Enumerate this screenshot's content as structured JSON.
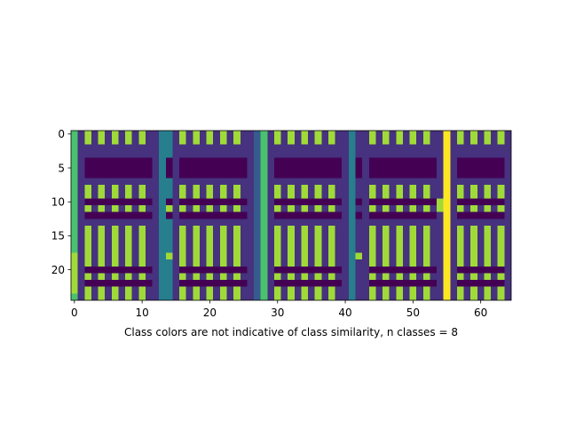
{
  "chart_data": {
    "type": "heatmap",
    "title": "",
    "xlabel": "Class colors are not indicative of class similarity, n classes = 8",
    "ylabel": "",
    "n_classes": 8,
    "n_rows": 25,
    "n_cols": 65,
    "xlim": [
      -0.5,
      64.5
    ],
    "ylim": [
      24.5,
      -0.5
    ],
    "x_ticks": [
      0,
      10,
      20,
      30,
      40,
      50,
      60
    ],
    "y_ticks": [
      0,
      5,
      10,
      15,
      20
    ],
    "colormap": "viridis",
    "class_colors": [
      "#440154",
      "#46327e",
      "#365c8d",
      "#277f8e",
      "#1fa187",
      "#4ac16d",
      "#a0da39",
      "#fde725"
    ],
    "column_patterns": {
      "A": [
        5,
        5,
        5,
        5,
        5,
        5,
        5,
        5,
        5,
        5,
        5,
        5,
        5,
        5,
        5,
        5,
        5,
        5,
        6,
        6,
        6,
        6,
        6,
        6,
        5
      ],
      "B": [
        1,
        1,
        1,
        1,
        1,
        1,
        1,
        1,
        1,
        1,
        1,
        1,
        1,
        1,
        1,
        1,
        1,
        1,
        1,
        1,
        1,
        1,
        1,
        1,
        1
      ],
      "C": [
        6,
        6,
        1,
        1,
        0,
        0,
        0,
        1,
        6,
        6,
        0,
        6,
        0,
        1,
        6,
        6,
        6,
        6,
        6,
        6,
        0,
        6,
        0,
        6,
        6
      ],
      "D": [
        1,
        1,
        1,
        1,
        0,
        0,
        0,
        1,
        1,
        1,
        0,
        1,
        0,
        1,
        1,
        1,
        1,
        1,
        1,
        1,
        0,
        1,
        0,
        1,
        1
      ],
      "E": [
        3,
        3,
        3,
        3,
        3,
        3,
        3,
        3,
        3,
        3,
        3,
        3,
        3,
        3,
        3,
        3,
        3,
        3,
        3,
        3,
        3,
        3,
        3,
        3,
        3
      ],
      "F": [
        3,
        3,
        3,
        3,
        0,
        0,
        0,
        3,
        3,
        3,
        0,
        6,
        0,
        3,
        3,
        3,
        3,
        3,
        6,
        3,
        3,
        3,
        3,
        3,
        3
      ],
      "G": [
        2,
        2,
        2,
        2,
        2,
        2,
        2,
        2,
        2,
        2,
        2,
        2,
        2,
        2,
        2,
        2,
        2,
        2,
        2,
        2,
        2,
        2,
        2,
        2,
        2
      ],
      "H": [
        5,
        5,
        5,
        5,
        5,
        5,
        5,
        5,
        5,
        5,
        5,
        5,
        5,
        5,
        5,
        5,
        5,
        5,
        5,
        5,
        5,
        5,
        5,
        5,
        5
      ],
      "I": [
        1,
        1,
        1,
        1,
        0,
        0,
        0,
        1,
        1,
        1,
        0,
        1,
        0,
        1,
        1,
        1,
        1,
        1,
        6,
        1,
        1,
        1,
        1,
        1,
        1
      ],
      "J": [
        7,
        7,
        7,
        7,
        7,
        7,
        7,
        7,
        7,
        7,
        7,
        7,
        7,
        7,
        7,
        7,
        7,
        7,
        7,
        7,
        7,
        7,
        7,
        7,
        7
      ],
      "K": [
        1,
        1,
        1,
        1,
        1,
        1,
        1,
        1,
        1,
        1,
        6,
        6,
        1,
        1,
        1,
        1,
        1,
        1,
        1,
        1,
        1,
        1,
        1,
        1,
        1
      ]
    },
    "columns": [
      "A",
      "B",
      "C",
      "D",
      "C",
      "D",
      "C",
      "D",
      "C",
      "D",
      "C",
      "D",
      "B",
      "E",
      "F",
      "B",
      "C",
      "D",
      "C",
      "D",
      "C",
      "D",
      "C",
      "D",
      "C",
      "D",
      "B",
      "G",
      "H",
      "B",
      "C",
      "D",
      "C",
      "D",
      "C",
      "D",
      "C",
      "D",
      "C",
      "D",
      "B",
      "E",
      "I",
      "B",
      "C",
      "D",
      "C",
      "D",
      "C",
      "D",
      "C",
      "D",
      "C",
      "D",
      "K",
      "J",
      "B",
      "C",
      "D",
      "C",
      "D",
      "C",
      "D",
      "C",
      "B"
    ]
  }
}
